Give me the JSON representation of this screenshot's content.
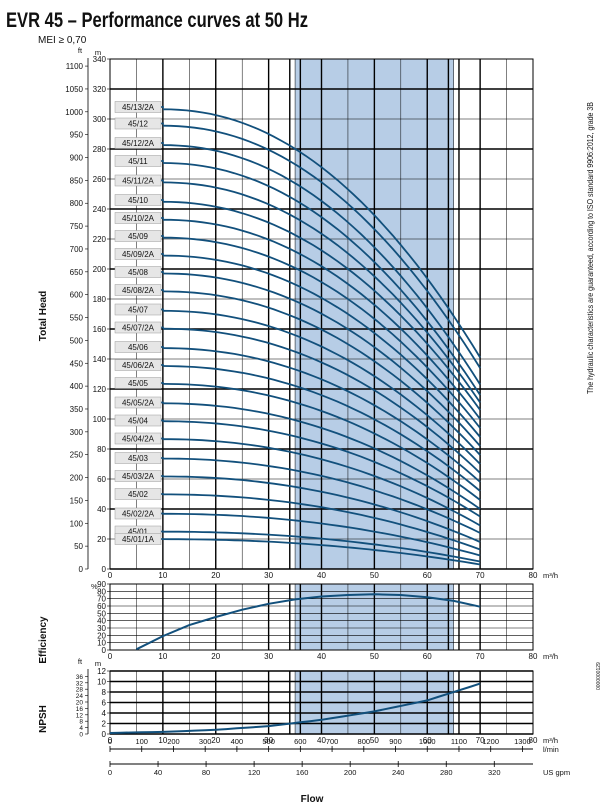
{
  "title": "EVR 45 – Performance curves at 50 Hz",
  "subtitle": "MEI ≥ 0,70",
  "side_note": "The hydraulic characteristics are guaranteed, according to ISO standard 9906:2012, grade 3B",
  "doc_code": "0000000129",
  "flow_label": "Flow",
  "colors": {
    "curve": "#12507c",
    "band": "#b7cde6",
    "grid": "#000000"
  },
  "chart_data": [
    {
      "type": "line",
      "name": "head",
      "ylabel": "Total Head",
      "x_unit": "m³/h",
      "y_unit_left": "m",
      "y_unit_ft": "ft",
      "xlim": [
        0,
        80
      ],
      "ylim": [
        0,
        340
      ],
      "x_ticks": [
        0,
        10,
        20,
        30,
        40,
        50,
        60,
        70,
        80
      ],
      "y_ticks": [
        0,
        20,
        40,
        60,
        80,
        100,
        120,
        140,
        160,
        180,
        200,
        220,
        240,
        260,
        280,
        300,
        320,
        340
      ],
      "ft_ticks": [
        0,
        50,
        100,
        150,
        200,
        250,
        300,
        350,
        400,
        450,
        500,
        550,
        600,
        650,
        700,
        750,
        800,
        850,
        900,
        950,
        1000,
        1050,
        1100
      ],
      "band": [
        35,
        65
      ],
      "x_end": 70,
      "series": [
        {
          "name": "45/13/2A",
          "shutoff": 308,
          "end": 141
        },
        {
          "name": "45/12",
          "shutoff": 297,
          "end": 134
        },
        {
          "name": "45/12/2A",
          "shutoff": 284,
          "end": 123
        },
        {
          "name": "45/11",
          "shutoff": 272,
          "end": 116
        },
        {
          "name": "45/11/2A",
          "shutoff": 259,
          "end": 111
        },
        {
          "name": "45/10",
          "shutoff": 246,
          "end": 106
        },
        {
          "name": "45/10/2A",
          "shutoff": 234,
          "end": 100
        },
        {
          "name": "45/09",
          "shutoff": 222,
          "end": 94
        },
        {
          "name": "45/09/2A",
          "shutoff": 210,
          "end": 88
        },
        {
          "name": "45/08",
          "shutoff": 198,
          "end": 82
        },
        {
          "name": "45/08/2A",
          "shutoff": 186,
          "end": 76
        },
        {
          "name": "45/07",
          "shutoff": 173,
          "end": 70
        },
        {
          "name": "45/07/2A",
          "shutoff": 161,
          "end": 64
        },
        {
          "name": "45/06",
          "shutoff": 148,
          "end": 58
        },
        {
          "name": "45/06/2A",
          "shutoff": 136,
          "end": 52
        },
        {
          "name": "45/05",
          "shutoff": 124,
          "end": 46
        },
        {
          "name": "45/05/2A",
          "shutoff": 111,
          "end": 40
        },
        {
          "name": "45/04",
          "shutoff": 99,
          "end": 35
        },
        {
          "name": "45/04/2A",
          "shutoff": 87,
          "end": 29
        },
        {
          "name": "45/03",
          "shutoff": 74,
          "end": 24
        },
        {
          "name": "45/03/2A",
          "shutoff": 62,
          "end": 18
        },
        {
          "name": "45/02",
          "shutoff": 50,
          "end": 13
        },
        {
          "name": "45/02/2A",
          "shutoff": 37,
          "end": 9
        },
        {
          "name": "45/01",
          "shutoff": 25,
          "end": 5
        },
        {
          "name": "45/01/1A",
          "shutoff": 20,
          "end": 3
        }
      ]
    },
    {
      "type": "line",
      "name": "efficiency",
      "ylabel": "Efficiency",
      "y_unit": "%",
      "x_unit": "m³/h",
      "xlim": [
        0,
        80
      ],
      "ylim": [
        0,
        90
      ],
      "y_ticks": [
        0,
        10,
        20,
        30,
        40,
        50,
        60,
        70,
        80,
        90
      ],
      "x": [
        5,
        10,
        15,
        20,
        25,
        30,
        35,
        40,
        45,
        50,
        55,
        60,
        65,
        70
      ],
      "y": [
        1,
        19,
        34,
        45,
        55,
        63,
        69,
        73,
        75,
        76,
        75,
        72,
        67,
        59
      ]
    },
    {
      "type": "line",
      "name": "npsh",
      "ylabel": "NPSH",
      "y_unit": "m",
      "y_unit_ft": "ft",
      "x_unit": "m³/h",
      "xlim": [
        0,
        80
      ],
      "ylim": [
        0,
        12
      ],
      "y_ticks": [
        0,
        2,
        4,
        6,
        8,
        10,
        12
      ],
      "ft_ticks": [
        0,
        4,
        8,
        12,
        16,
        20,
        24,
        28,
        32,
        36
      ],
      "x": [
        0,
        10,
        20,
        30,
        40,
        50,
        60,
        70
      ],
      "y": [
        0.2,
        0.4,
        0.8,
        1.5,
        2.7,
        4.3,
        6.4,
        9.6
      ],
      "lmin_label": "l/min",
      "lmin_ticks": [
        0,
        100,
        200,
        300,
        400,
        500,
        600,
        700,
        800,
        900,
        1000,
        1100,
        1200,
        1300
      ],
      "usgpm_label": "US gpm",
      "usgpm_ticks": [
        0,
        40,
        80,
        120,
        160,
        200,
        240,
        280,
        320
      ]
    }
  ]
}
